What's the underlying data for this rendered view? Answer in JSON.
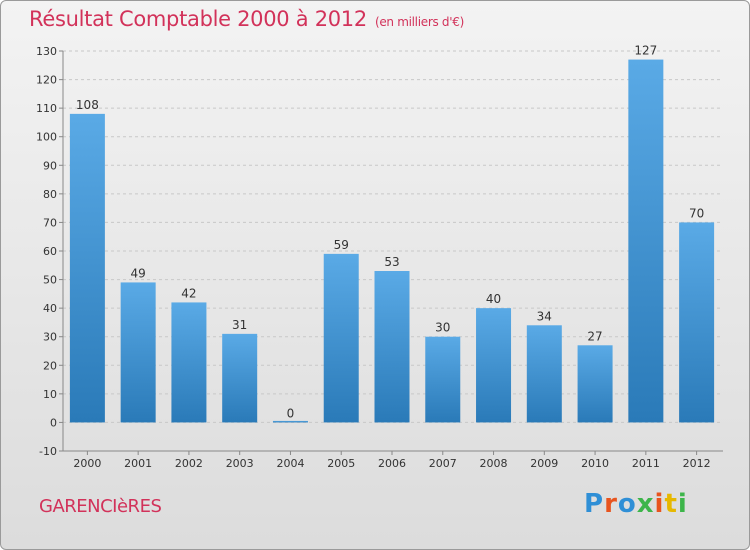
{
  "title": "Résultat Comptable 2000 à 2012",
  "unit": "(en milliers d'€)",
  "town": "GARENCIèRES",
  "logo": {
    "letters": [
      "P",
      "r",
      "o",
      "x",
      "i",
      "t",
      "i"
    ],
    "colors": [
      "#2f8fd6",
      "#e8541e",
      "#2f8fd6",
      "#3db54a",
      "#e8541e",
      "#e6b800",
      "#3db54a"
    ]
  },
  "colors": {
    "bar": "#4d9fe0",
    "bar_dark": "#2a7ab8",
    "title": "#d2325a",
    "grid": "#c8c8c8"
  },
  "chart_data": {
    "type": "bar",
    "title": "Résultat Comptable 2000 à 2012",
    "categories": [
      "2000",
      "2001",
      "2002",
      "2003",
      "2004",
      "2005",
      "2006",
      "2007",
      "2008",
      "2009",
      "2010",
      "2011",
      "2012"
    ],
    "values": [
      108,
      49,
      42,
      31,
      0,
      59,
      53,
      30,
      40,
      34,
      27,
      127,
      70
    ],
    "ylim": [
      -10,
      130
    ],
    "yticks": [
      -10,
      0,
      10,
      20,
      30,
      40,
      50,
      60,
      70,
      80,
      90,
      100,
      110,
      120,
      130
    ],
    "grid": true,
    "legend": "none"
  }
}
